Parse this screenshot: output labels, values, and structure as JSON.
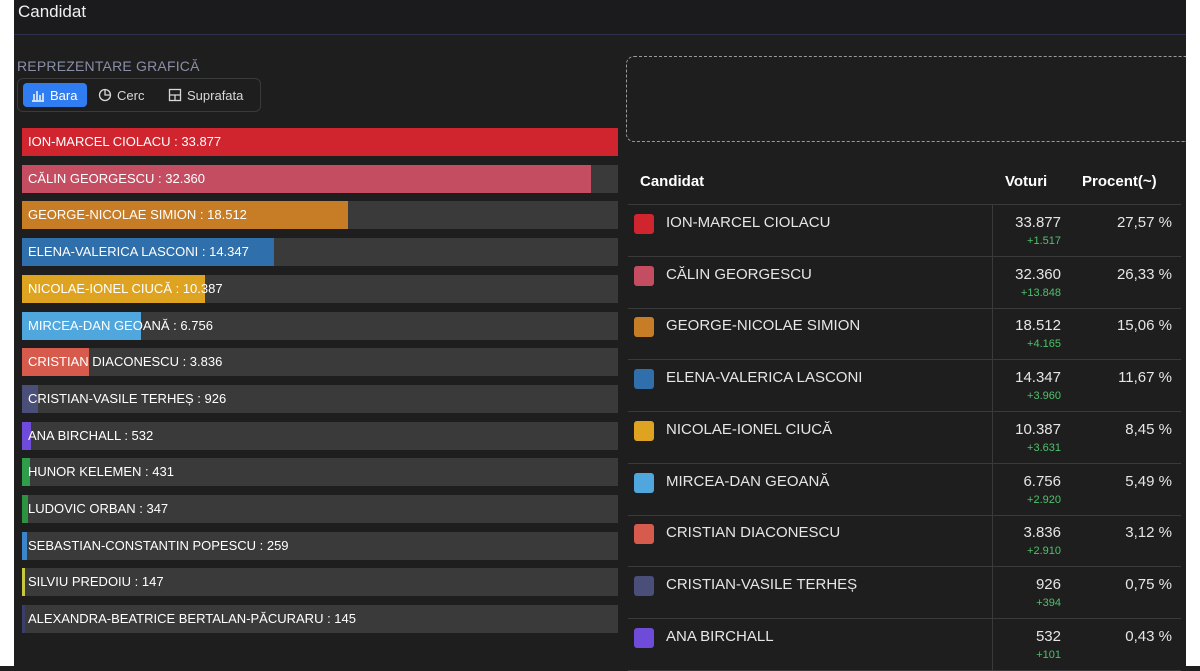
{
  "header": {
    "title": "Candidat"
  },
  "chart_section": {
    "label": "REPREZENTARE GRAFICĂ",
    "tabs": [
      {
        "label": "Bara",
        "icon": "bar-chart-icon",
        "active": true
      },
      {
        "label": "Cerc",
        "icon": "pie-chart-icon",
        "active": false
      },
      {
        "label": "Suprafata",
        "icon": "area-chart-icon",
        "active": false
      }
    ]
  },
  "chart_data": {
    "type": "bar",
    "orientation": "horizontal",
    "categories": [
      "ION-MARCEL CIOLACU",
      "CĂLIN GEORGESCU",
      "GEORGE-NICOLAE SIMION",
      "ELENA-VALERICA LASCONI",
      "NICOLAE-IONEL CIUCĂ",
      "MIRCEA-DAN GEOANĂ",
      "CRISTIAN DIACONESCU",
      "CRISTIAN-VASILE TERHEȘ",
      "ANA BIRCHALL",
      "HUNOR KELEMEN",
      "LUDOVIC ORBAN",
      "SEBASTIAN-CONSTANTIN POPESCU",
      "SILVIU PREDOIU",
      "ALEXANDRA-BEATRICE BERTALAN-PĂCURARU"
    ],
    "values": [
      33877,
      32360,
      18512,
      14347,
      10387,
      6756,
      3836,
      926,
      532,
      431,
      347,
      259,
      147,
      145
    ],
    "value_labels": [
      "33.877",
      "32.360",
      "18.512",
      "14.347",
      "10.387",
      "6.756",
      "3.836",
      "926",
      "532",
      "431",
      "347",
      "259",
      "147",
      "145"
    ],
    "colors": [
      "#d0242f",
      "#c44d62",
      "#c77d25",
      "#2f6fab",
      "#dea321",
      "#4fa7de",
      "#d75b4c",
      "#4a4f7a",
      "#6e4bd8",
      "#2f9e4a",
      "#2c9440",
      "#3a86c8",
      "#c8c840",
      "#3a3f6a"
    ],
    "xlim": [
      0,
      33877
    ]
  },
  "table": {
    "headers": {
      "candidate": "Candidat",
      "votes": "Voturi",
      "percent": "Procent(~)"
    },
    "rows": [
      {
        "name": "ION-MARCEL CIOLACU",
        "votes": "33.877",
        "delta": "+1.517",
        "percent": "27,57 %",
        "color": "#d0242f"
      },
      {
        "name": "CĂLIN GEORGESCU",
        "votes": "32.360",
        "delta": "+13.848",
        "percent": "26,33 %",
        "color": "#c44d62"
      },
      {
        "name": "GEORGE-NICOLAE SIMION",
        "votes": "18.512",
        "delta": "+4.165",
        "percent": "15,06 %",
        "color": "#c77d25"
      },
      {
        "name": "ELENA-VALERICA LASCONI",
        "votes": "14.347",
        "delta": "+3.960",
        "percent": "11,67 %",
        "color": "#2f6fab"
      },
      {
        "name": "NICOLAE-IONEL CIUCĂ",
        "votes": "10.387",
        "delta": "+3.631",
        "percent": "8,45 %",
        "color": "#dea321"
      },
      {
        "name": "MIRCEA-DAN GEOANĂ",
        "votes": "6.756",
        "delta": "+2.920",
        "percent": "5,49 %",
        "color": "#4fa7de"
      },
      {
        "name": "CRISTIAN DIACONESCU",
        "votes": "3.836",
        "delta": "+2.910",
        "percent": "3,12 %",
        "color": "#d75b4c"
      },
      {
        "name": "CRISTIAN-VASILE TERHEȘ",
        "votes": "926",
        "delta": "+394",
        "percent": "0,75 %",
        "color": "#4a4f7a"
      },
      {
        "name": "ANA BIRCHALL",
        "votes": "532",
        "delta": "+101",
        "percent": "0,43 %",
        "color": "#6e4bd8"
      }
    ]
  }
}
